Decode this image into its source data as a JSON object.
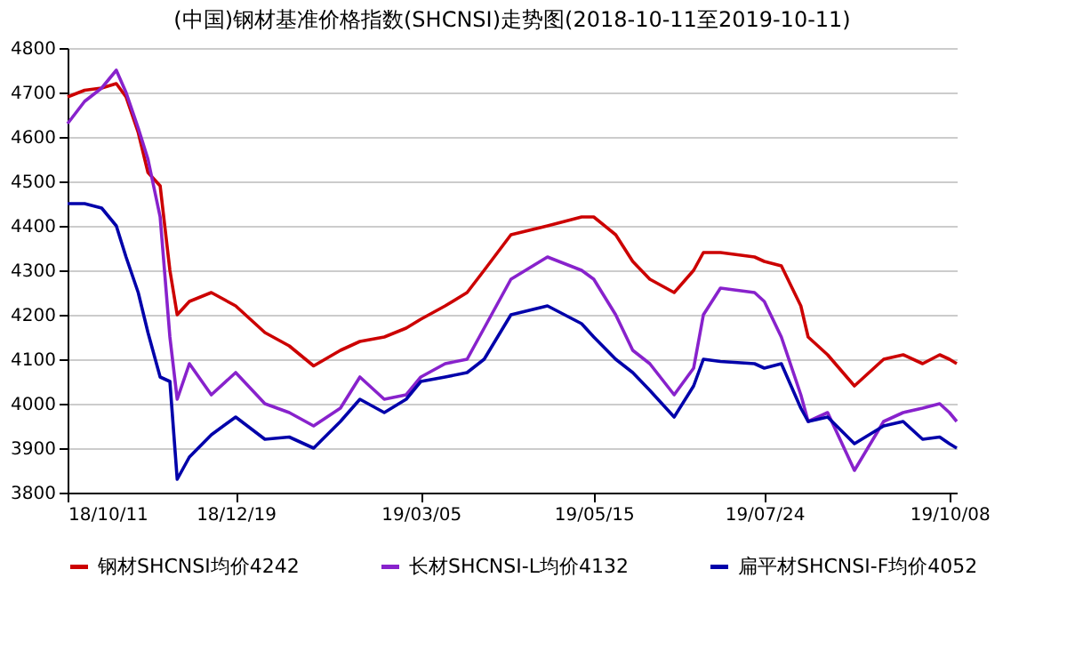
{
  "chart_data": {
    "type": "line",
    "title": "(中国)钢材基准价格指数(SHCNSI)走势图(2018-10-11至2019-10-11)",
    "x": [
      "2018-10-11",
      "2018-10-18",
      "2018-10-25",
      "2018-10-31",
      "2018-11-04",
      "2018-11-09",
      "2018-11-13",
      "2018-11-18",
      "2018-11-22",
      "2018-11-25",
      "2018-11-30",
      "2018-12-09",
      "2018-12-19",
      "2018-12-31",
      "2019-01-10",
      "2019-01-20",
      "2019-01-31",
      "2019-02-08",
      "2019-02-18",
      "2019-02-27",
      "2019-03-05",
      "2019-03-15",
      "2019-03-24",
      "2019-03-31",
      "2019-04-11",
      "2019-04-26",
      "2019-05-10",
      "2019-05-15",
      "2019-05-24",
      "2019-05-31",
      "2019-06-07",
      "2019-06-17",
      "2019-06-25",
      "2019-06-29",
      "2019-07-06",
      "2019-07-20",
      "2019-07-24",
      "2019-07-31",
      "2019-08-08",
      "2019-08-11",
      "2019-08-19",
      "2019-08-30",
      "2019-09-11",
      "2019-09-19",
      "2019-09-27",
      "2019-10-04",
      "2019-10-08",
      "2019-10-11"
    ],
    "series": [
      {
        "name": "钢材SHCNSI均价4242",
        "color": "#cc0000",
        "values": [
          4690,
          4705,
          4710,
          4720,
          4690,
          4610,
          4520,
          4490,
          4300,
          4200,
          4230,
          4250,
          4220,
          4160,
          4130,
          4085,
          4120,
          4140,
          4150,
          4170,
          4190,
          4220,
          4250,
          4300,
          4380,
          4400,
          4420,
          4420,
          4380,
          4320,
          4280,
          4250,
          4300,
          4340,
          4340,
          4330,
          4320,
          4310,
          4220,
          4150,
          4110,
          4040,
          4100,
          4110,
          4090,
          4110,
          4100,
          4090
        ]
      },
      {
        "name": "长材SHCNSI-L均价4132",
        "color": "#8822cc",
        "values": [
          4630,
          4680,
          4710,
          4750,
          4700,
          4620,
          4550,
          4420,
          4150,
          4010,
          4090,
          4020,
          4070,
          4000,
          3980,
          3950,
          3990,
          4060,
          4010,
          4020,
          4060,
          4090,
          4100,
          4170,
          4280,
          4330,
          4300,
          4280,
          4200,
          4120,
          4090,
          4020,
          4080,
          4200,
          4260,
          4250,
          4230,
          4150,
          4020,
          3960,
          3980,
          3850,
          3960,
          3980,
          3990,
          4000,
          3980,
          3960
        ]
      },
      {
        "name": "扁平材SHCNSI-F均价4052",
        "color": "#0000aa",
        "values": [
          4450,
          4450,
          4440,
          4400,
          4330,
          4250,
          4160,
          4060,
          4050,
          3830,
          3880,
          3930,
          3970,
          3920,
          3925,
          3900,
          3960,
          4010,
          3980,
          4010,
          4050,
          4060,
          4070,
          4100,
          4200,
          4220,
          4180,
          4150,
          4100,
          4070,
          4030,
          3970,
          4040,
          4100,
          4095,
          4090,
          4080,
          4090,
          3990,
          3960,
          3970,
          3910,
          3950,
          3960,
          3920,
          3925,
          3910,
          3900
        ]
      }
    ],
    "xlim": [
      "2018-10-11",
      "2019-10-11"
    ],
    "xticks": [
      {
        "value": "2018-10-11",
        "label": "18/10/11"
      },
      {
        "value": "2018-12-19",
        "label": "18/12/19"
      },
      {
        "value": "2019-03-05",
        "label": "19/03/05"
      },
      {
        "value": "2019-05-15",
        "label": "19/05/15"
      },
      {
        "value": "2019-07-24",
        "label": "19/07/24"
      },
      {
        "value": "2019-10-08",
        "label": "19/10/08"
      }
    ],
    "ylim": [
      3800,
      4800
    ],
    "yticks": [
      3800,
      3900,
      4000,
      4100,
      4200,
      4300,
      4400,
      4500,
      4600,
      4700,
      4800
    ],
    "grid": "y",
    "legend": "bottom",
    "marker": "none",
    "line_style": "solid"
  }
}
